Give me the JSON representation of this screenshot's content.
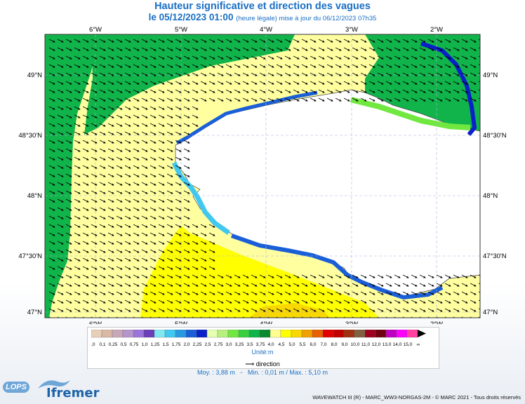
{
  "title": "Hauteur significative et direction des vagues",
  "subtitle_main": "le 05/12/2023 01:00",
  "subtitle_note": "(heure légale) mise à jour du 06/12/2023 07h35",
  "lon_labels": [
    "6°W",
    "5°W",
    "4°W",
    "3°W",
    "2°W"
  ],
  "lat_labels": [
    "49°N",
    "48°30'N",
    "48°N",
    "47°30'N",
    "47°N"
  ],
  "legend": {
    "values": [
      "0,0",
      "0,1",
      "0,25",
      "0,5",
      "0,75",
      "1,0",
      "1,25",
      "1,5",
      "1,75",
      "2,0",
      "2,25",
      "2,5",
      "2,75",
      "3,0",
      "3,25",
      "3,5",
      "3,75",
      "4,0",
      "4,5",
      "5,0",
      "5,5",
      "6,0",
      "7,0",
      "8,0",
      "9,0",
      "10,0",
      "11,0",
      "12,0",
      "13,0",
      "14,0",
      "15,0",
      "∞"
    ],
    "colors": [
      "#e8cfb8",
      "#d9b8a4",
      "#c8a8b8",
      "#b496cc",
      "#9a74d8",
      "#6a3fb8",
      "#80e8f0",
      "#40c8f0",
      "#2a9ae0",
      "#1a5fd8",
      "#0a20c8",
      "#e6ffb0",
      "#b8f080",
      "#70e840",
      "#38d040",
      "#10b44a",
      "#0a8a30",
      "#ffff90",
      "#ffff00",
      "#f8d800",
      "#f0a000",
      "#e86000",
      "#e00000",
      "#c00000",
      "#a03010",
      "#806040",
      "#a00020",
      "#700010",
      "#c000c0",
      "#ff00ff",
      "#ff40a0"
    ],
    "unit": "Unité:m"
  },
  "direction_label": "direction",
  "stats": "Moy. : 3,88 m   -   Min. : 0,01 m / Max. : 5,10 m",
  "footer": "WAVEWATCH III (R) - MARC_WW3-NORGAS-2M - © MARC 2021 - Tous droits réservés",
  "logos": {
    "lops": "LOPS",
    "ifremer": "Ifremer"
  },
  "map_legend_colors": {
    "sea_high": "#ffffa0",
    "sea_peak": "#ffff00",
    "sea_max": "#f8d800",
    "sea_mid": "#10b44a",
    "coast_low": "#1a5fd8"
  }
}
